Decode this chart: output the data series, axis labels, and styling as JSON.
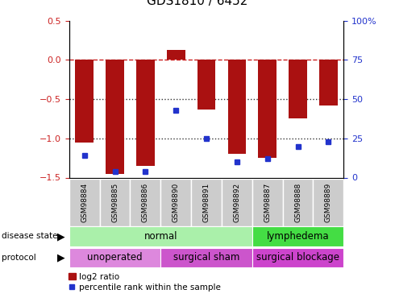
{
  "title": "GDS1810 / 6452",
  "samples": [
    "GSM98884",
    "GSM98885",
    "GSM98886",
    "GSM98890",
    "GSM98891",
    "GSM98892",
    "GSM98887",
    "GSM98888",
    "GSM98889"
  ],
  "log2_ratio": [
    -1.05,
    -1.45,
    -1.35,
    0.13,
    -0.63,
    -1.2,
    -1.25,
    -0.75,
    -0.58
  ],
  "percentile_rank": [
    14,
    4,
    4,
    43,
    25,
    10,
    12,
    20,
    23
  ],
  "ylim_left": [
    -1.5,
    0.5
  ],
  "ylim_right": [
    0,
    100
  ],
  "bar_color": "#aa1111",
  "dot_color": "#2233cc",
  "disease_state": [
    {
      "label": "normal",
      "start": 0,
      "end": 6,
      "color": "#aaf0aa"
    },
    {
      "label": "lymphedema",
      "start": 6,
      "end": 9,
      "color": "#44dd44"
    }
  ],
  "protocol": [
    {
      "label": "unoperated",
      "start": 0,
      "end": 3,
      "color": "#dd88dd"
    },
    {
      "label": "surgical sham",
      "start": 3,
      "end": 6,
      "color": "#cc55cc"
    },
    {
      "label": "surgical blockage",
      "start": 6,
      "end": 9,
      "color": "#cc44cc"
    }
  ],
  "tick_label_color_left": "#cc2222",
  "tick_label_color_right": "#2233cc",
  "hline_y": [
    0,
    -0.5,
    -1.0
  ],
  "hline_styles": [
    "dashed",
    "dotted",
    "dotted"
  ],
  "hline_colors": [
    "#cc2222",
    "#333333",
    "#333333"
  ],
  "left_yticks": [
    0.5,
    0.0,
    -0.5,
    -1.0,
    -1.5
  ],
  "right_yticks": [
    100,
    75,
    50,
    25,
    0
  ],
  "bar_width": 0.6,
  "legend_labels": [
    "log2 ratio",
    "percentile rank within the sample"
  ]
}
